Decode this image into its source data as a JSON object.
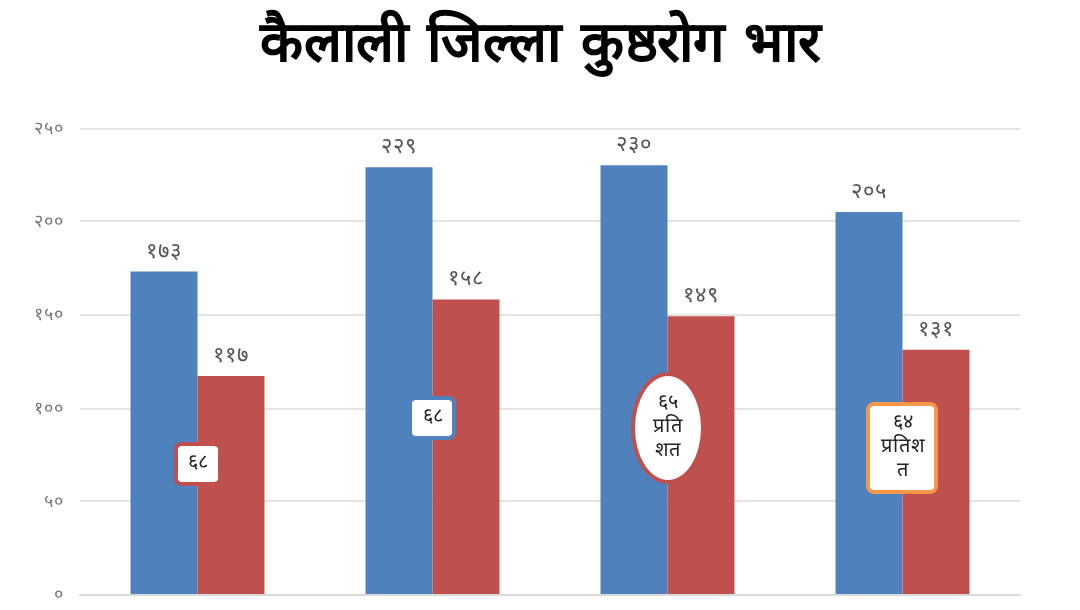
{
  "chart_data": {
    "type": "bar",
    "title": "कैलाली जिल्ला कुष्ठरोग भार",
    "categories": [
      null,
      null,
      null,
      null
    ],
    "series": [
      {
        "color": "#4f81bd",
        "values": [
          173,
          229,
          230,
          205
        ],
        "value_labels": [
          "१७३",
          "२२९",
          "२३०",
          "२०५"
        ]
      },
      {
        "color": "#c0504d",
        "values": [
          117,
          158,
          149,
          131
        ],
        "value_labels": [
          "११७",
          "१५८",
          "१४९",
          "१३१"
        ]
      }
    ],
    "ylim": [
      0,
      250
    ],
    "yticks": [
      {
        "value": 0,
        "label": "०"
      },
      {
        "value": 50,
        "label": "५०"
      },
      {
        "value": 100,
        "label": "१००"
      },
      {
        "value": 150,
        "label": "१५०"
      },
      {
        "value": 200,
        "label": "२००"
      },
      {
        "value": 250,
        "label": "२५०"
      }
    ],
    "grid": "y",
    "annotations": [
      "६८",
      "६८",
      "६५\nप्रति\nशत",
      "६४\nप्रतिश\nत"
    ]
  }
}
